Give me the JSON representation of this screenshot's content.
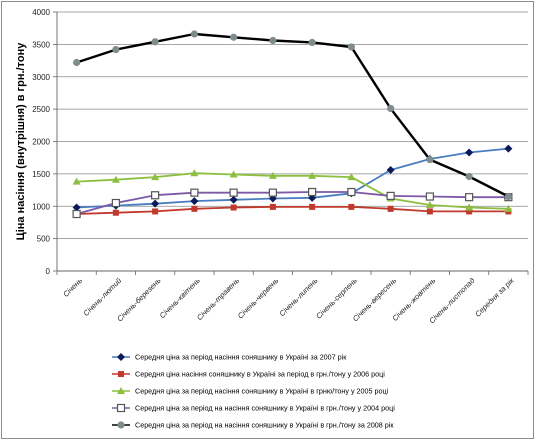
{
  "chart_data": {
    "type": "line",
    "title": "",
    "xlabel": "",
    "ylabel": "Ціна насіння  (внутрішня)  в грн./тону",
    "ylim": [
      0,
      4000
    ],
    "yticks": [
      "0",
      "500",
      "1000",
      "1500",
      "2000",
      "2500",
      "3000",
      "3500",
      "4000"
    ],
    "ytick_values": [
      0,
      500,
      1000,
      1500,
      2000,
      2500,
      3000,
      3500,
      4000
    ],
    "categories": [
      "Січень",
      "Січень-лютий",
      "Січень-березень",
      "Січень-квітень",
      "Січень-травень",
      "Січень-червень",
      "Січень-липень",
      "Січень-серпень",
      "Січень-вересень",
      "Січень-жовтень",
      "Січень-листопад",
      "Середня за рік"
    ],
    "grid": "horizontal",
    "legend_position": "bottom",
    "series": [
      {
        "name": "Середня ціна за період насіння соняшнику в Україні за 2007 рік",
        "color": "#4a7dbf",
        "marker": "diamond",
        "marker_color": "#0a1a5a",
        "values": [
          980,
          1010,
          1040,
          1080,
          1100,
          1120,
          1130,
          1200,
          1560,
          1730,
          1830,
          1890
        ]
      },
      {
        "name": "Середня ціна насіння соняшнику в Україні за період в грн./тону у 2006 році",
        "color": "#c0392b",
        "marker": "square",
        "marker_color": "#c0392b",
        "values": [
          880,
          900,
          920,
          960,
          980,
          990,
          990,
          990,
          960,
          920,
          920,
          920
        ]
      },
      {
        "name": "Середня ціна за період насіння соняшнику в Україні в грню/тону у 2005 році",
        "color": "#8cbf3f",
        "marker": "triangle",
        "marker_color": "#8cbf3f",
        "values": [
          1380,
          1410,
          1450,
          1510,
          1490,
          1470,
          1470,
          1450,
          1120,
          1020,
          980,
          960
        ]
      },
      {
        "name": "Середня ціна за період на насіння соняшнику в Україні в грн./тону у 2004 році",
        "color": "#7d5aa6",
        "marker": "square-open",
        "marker_color": "#555555",
        "values": [
          880,
          1050,
          1170,
          1210,
          1210,
          1210,
          1220,
          1220,
          1160,
          1150,
          1140,
          1140
        ]
      },
      {
        "name": "Середня ціна за період на насіння соняшнику в Україні в грн./тону за 2008 рік",
        "color": "#000000",
        "marker": "circle",
        "marker_color": "#7f8c8d",
        "values": [
          3220,
          3420,
          3540,
          3660,
          3610,
          3560,
          3530,
          3460,
          2510,
          1720,
          1460,
          1150
        ]
      }
    ]
  }
}
